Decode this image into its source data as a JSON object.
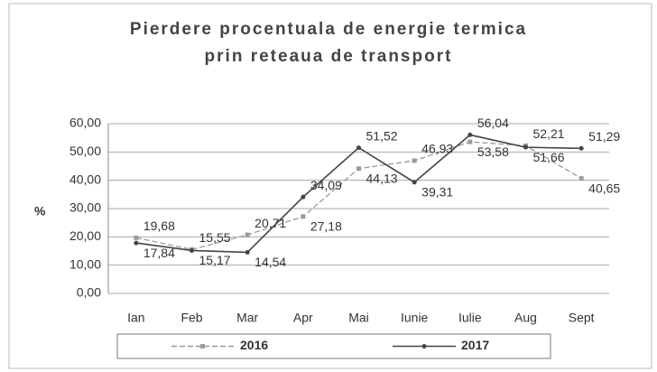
{
  "chart_data": {
    "type": "line",
    "title": "Pierdere procentuala de energie termica prin reteaua de transport",
    "ylabel": "%",
    "categories": [
      "Ian",
      "Feb",
      "Mar",
      "Apr",
      "Mai",
      "Iunie",
      "Iulie",
      "Aug",
      "Sept"
    ],
    "series": [
      {
        "name": "2016",
        "color": "#9a9a9a",
        "values": [
          19.68,
          15.55,
          20.71,
          27.18,
          44.13,
          46.93,
          53.58,
          52.21,
          40.65
        ],
        "value_labels": [
          "19,68",
          "15,55",
          "20,71",
          "27,18",
          "44,13",
          "46,93",
          "53,58",
          "52,21",
          "40,65"
        ]
      },
      {
        "name": "2017",
        "color": "#444444",
        "values": [
          17.84,
          15.17,
          14.54,
          34.09,
          51.52,
          39.31,
          56.04,
          51.66,
          51.29
        ],
        "value_labels": [
          "17,84",
          "15,17",
          "14,54",
          "34,09",
          "51,52",
          "39,31",
          "56,04",
          "51,66",
          "51,29"
        ]
      }
    ],
    "ylim": [
      0,
      60
    ],
    "yticks": [
      {
        "value": 0,
        "label": "0,00"
      },
      {
        "value": 10,
        "label": "10,00"
      },
      {
        "value": 20,
        "label": "20,00"
      },
      {
        "value": 30,
        "label": "30,00"
      },
      {
        "value": 40,
        "label": "40,00"
      },
      {
        "value": 50,
        "label": "50,00"
      },
      {
        "value": 60,
        "label": "60,00"
      }
    ],
    "grid": true,
    "legend": "bottom"
  }
}
